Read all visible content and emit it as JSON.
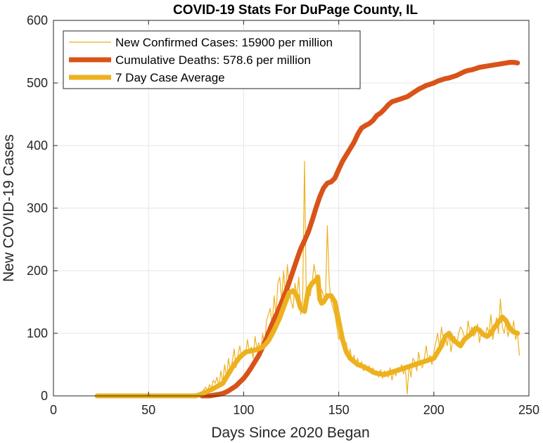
{
  "chart_data": {
    "type": "line",
    "title": "COVID-19 Stats For DuPage County, IL",
    "xlabel": "Days Since 2020 Began",
    "ylabel": "New COVID-19 Cases",
    "xlim": [
      0,
      250
    ],
    "ylim": [
      0,
      600
    ],
    "xticks": [
      0,
      50,
      100,
      150,
      200,
      250
    ],
    "yticks": [
      0,
      100,
      200,
      300,
      400,
      500,
      600
    ],
    "grid": true,
    "legend_position": "top-left",
    "series": [
      {
        "name": "New Confirmed Cases: 15900 per million",
        "color": "#EDB120",
        "style": "thin",
        "x": [
          23,
          30,
          40,
          50,
          60,
          70,
          75,
          77,
          78,
          79,
          80,
          81,
          82,
          83,
          84,
          85,
          86,
          87,
          88,
          89,
          90,
          91,
          92,
          93,
          94,
          95,
          96,
          97,
          98,
          99,
          100,
          101,
          102,
          103,
          104,
          105,
          106,
          107,
          108,
          109,
          110,
          111,
          112,
          113,
          114,
          115,
          116,
          117,
          118,
          119,
          120,
          121,
          122,
          123,
          124,
          125,
          126,
          127,
          128,
          129,
          130,
          131,
          132,
          133,
          134,
          135,
          136,
          137,
          138,
          139,
          140,
          141,
          142,
          143,
          144,
          145,
          146,
          147,
          148,
          149,
          150,
          151,
          152,
          153,
          154,
          155,
          156,
          157,
          158,
          159,
          160,
          161,
          162,
          163,
          164,
          165,
          166,
          167,
          168,
          169,
          170,
          171,
          172,
          173,
          174,
          175,
          176,
          177,
          178,
          179,
          180,
          181,
          182,
          183,
          184,
          185,
          186,
          187,
          188,
          189,
          190,
          191,
          192,
          193,
          194,
          195,
          196,
          197,
          198,
          199,
          200,
          201,
          202,
          203,
          204,
          205,
          206,
          207,
          208,
          209,
          210,
          211,
          212,
          213,
          214,
          215,
          216,
          217,
          218,
          219,
          220,
          221,
          222,
          223,
          224,
          225,
          226,
          227,
          228,
          229,
          230,
          231,
          232,
          233,
          234,
          235,
          236,
          237,
          238,
          239,
          240,
          241,
          242,
          243,
          244,
          245
        ],
        "y": [
          0,
          0,
          0,
          0,
          0,
          0,
          0,
          2,
          5,
          10,
          14,
          8,
          18,
          12,
          25,
          20,
          30,
          15,
          40,
          22,
          50,
          28,
          60,
          40,
          55,
          75,
          45,
          65,
          80,
          60,
          72,
          65,
          90,
          70,
          78,
          60,
          95,
          75,
          85,
          70,
          100,
          80,
          120,
          130,
          140,
          110,
          160,
          130,
          180,
          190,
          150,
          200,
          160,
          210,
          170,
          150,
          140,
          180,
          160,
          190,
          130,
          150,
          375,
          140,
          170,
          160,
          180,
          210,
          190,
          170,
          150,
          170,
          160,
          150,
          272,
          180,
          150,
          140,
          130,
          110,
          90,
          100,
          80,
          70,
          85,
          60,
          75,
          55,
          65,
          50,
          60,
          45,
          55,
          40,
          50,
          42,
          48,
          38,
          45,
          35,
          40,
          30,
          42,
          28,
          40,
          36,
          30,
          45,
          25,
          40,
          32,
          45,
          38,
          50,
          35,
          45,
          3,
          50,
          30,
          60,
          55,
          40,
          70,
          50,
          45,
          60,
          80,
          55,
          65,
          50,
          70,
          85,
          100,
          75,
          110,
          90,
          95,
          80,
          100,
          70,
          90,
          95,
          80,
          100,
          110,
          105,
          95,
          90,
          120,
          100,
          110,
          95,
          100,
          115,
          85,
          105,
          100,
          95,
          110,
          100,
          130,
          90,
          110,
          125,
          100,
          155,
          110,
          100,
          120,
          95,
          110,
          100,
          120,
          90,
          100,
          65
        ]
      },
      {
        "name": "Cumulative Deaths: 578.6 per million",
        "color": "#D95319",
        "style": "thick",
        "x": [
          78,
          80,
          82,
          84,
          86,
          88,
          90,
          92,
          94,
          96,
          98,
          100,
          102,
          104,
          106,
          108,
          110,
          112,
          114,
          116,
          118,
          120,
          122,
          124,
          126,
          128,
          130,
          132,
          134,
          136,
          138,
          140,
          142,
          144,
          146,
          148,
          150,
          152,
          154,
          156,
          158,
          160,
          162,
          164,
          166,
          168,
          170,
          172,
          174,
          176,
          178,
          180,
          182,
          184,
          186,
          188,
          190,
          192,
          194,
          196,
          198,
          200,
          202,
          204,
          206,
          208,
          210,
          212,
          214,
          216,
          218,
          220,
          222,
          224,
          226,
          228,
          230,
          232,
          234,
          236,
          238,
          240,
          242,
          244
        ],
        "y": [
          0,
          0,
          0,
          1,
          2,
          3,
          5,
          8,
          12,
          16,
          22,
          28,
          36,
          45,
          55,
          65,
          78,
          92,
          108,
          122,
          135,
          150,
          165,
          182,
          200,
          218,
          235,
          248,
          262,
          280,
          300,
          318,
          332,
          340,
          342,
          348,
          362,
          375,
          385,
          395,
          405,
          418,
          428,
          432,
          435,
          440,
          448,
          452,
          458,
          465,
          470,
          472,
          474,
          476,
          478,
          482,
          486,
          490,
          493,
          496,
          498,
          500,
          503,
          505,
          507,
          508,
          510,
          512,
          515,
          518,
          520,
          521,
          523,
          525,
          526,
          527,
          528,
          529,
          530,
          531,
          532,
          533,
          533,
          532
        ]
      },
      {
        "name": "7 Day Case Average",
        "color": "#EDB120",
        "style": "thick",
        "x": [
          23,
          30,
          40,
          50,
          60,
          70,
          75,
          77,
          80,
          83,
          86,
          89,
          92,
          95,
          98,
          101,
          104,
          107,
          110,
          113,
          116,
          119,
          122,
          124,
          126,
          128,
          130,
          132,
          134,
          135,
          136,
          138,
          139,
          140,
          141,
          142,
          144,
          146,
          148,
          150,
          152,
          154,
          156,
          158,
          160,
          162,
          164,
          166,
          168,
          170,
          172,
          174,
          176,
          178,
          180,
          182,
          184,
          186,
          188,
          190,
          192,
          194,
          196,
          198,
          200,
          202,
          204,
          206,
          208,
          210,
          212,
          214,
          216,
          218,
          220,
          222,
          224,
          226,
          228,
          230,
          232,
          234,
          236,
          238,
          240,
          242,
          244
        ],
        "y": [
          0,
          0,
          0,
          0,
          0,
          0,
          0,
          2,
          6,
          10,
          15,
          20,
          35,
          50,
          62,
          70,
          72,
          74,
          78,
          88,
          105,
          125,
          150,
          165,
          168,
          160,
          140,
          135,
          170,
          175,
          180,
          185,
          190,
          155,
          148,
          150,
          160,
          160,
          150,
          120,
          90,
          70,
          60,
          55,
          50,
          48,
          45,
          42,
          38,
          36,
          35,
          34,
          36,
          38,
          40,
          42,
          44,
          46,
          48,
          50,
          52,
          54,
          56,
          58,
          60,
          70,
          80,
          95,
          100,
          90,
          85,
          80,
          90,
          95,
          100,
          108,
          105,
          98,
          95,
          100,
          110,
          118,
          126,
          120,
          108,
          102,
          100
        ]
      }
    ]
  }
}
